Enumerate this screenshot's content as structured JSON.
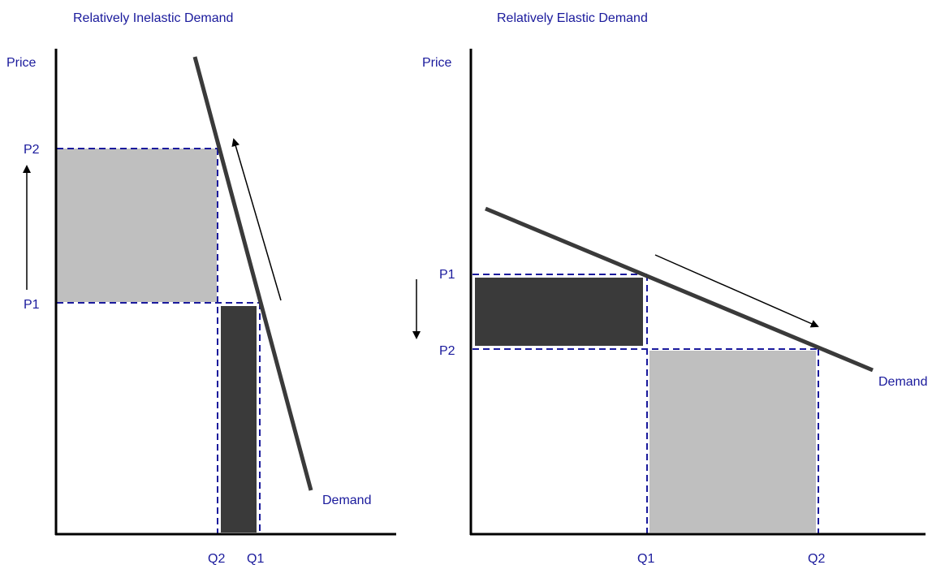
{
  "colors": {
    "label": "#1a1a9c",
    "dashed": "#1a1a9c",
    "gain": "#bfbfbf",
    "loss": "#3a3a3a",
    "axis": "#000000",
    "curve": "#3a3a3a"
  },
  "inelastic": {
    "title": "Relatively Inelastic Demand",
    "y_axis_label": "Price",
    "price_high": "P2",
    "price_low": "P1",
    "qty_small": "Q2",
    "qty_large": "Q1",
    "curve_label": "Demand",
    "price_change": "increase"
  },
  "elastic": {
    "title": "Relatively Elastic Demand",
    "y_axis_label": "Price",
    "price_high": "P1",
    "price_low": "P2",
    "qty_small": "Q1",
    "qty_large": "Q2",
    "curve_label": "Demand",
    "price_change": "decrease"
  }
}
